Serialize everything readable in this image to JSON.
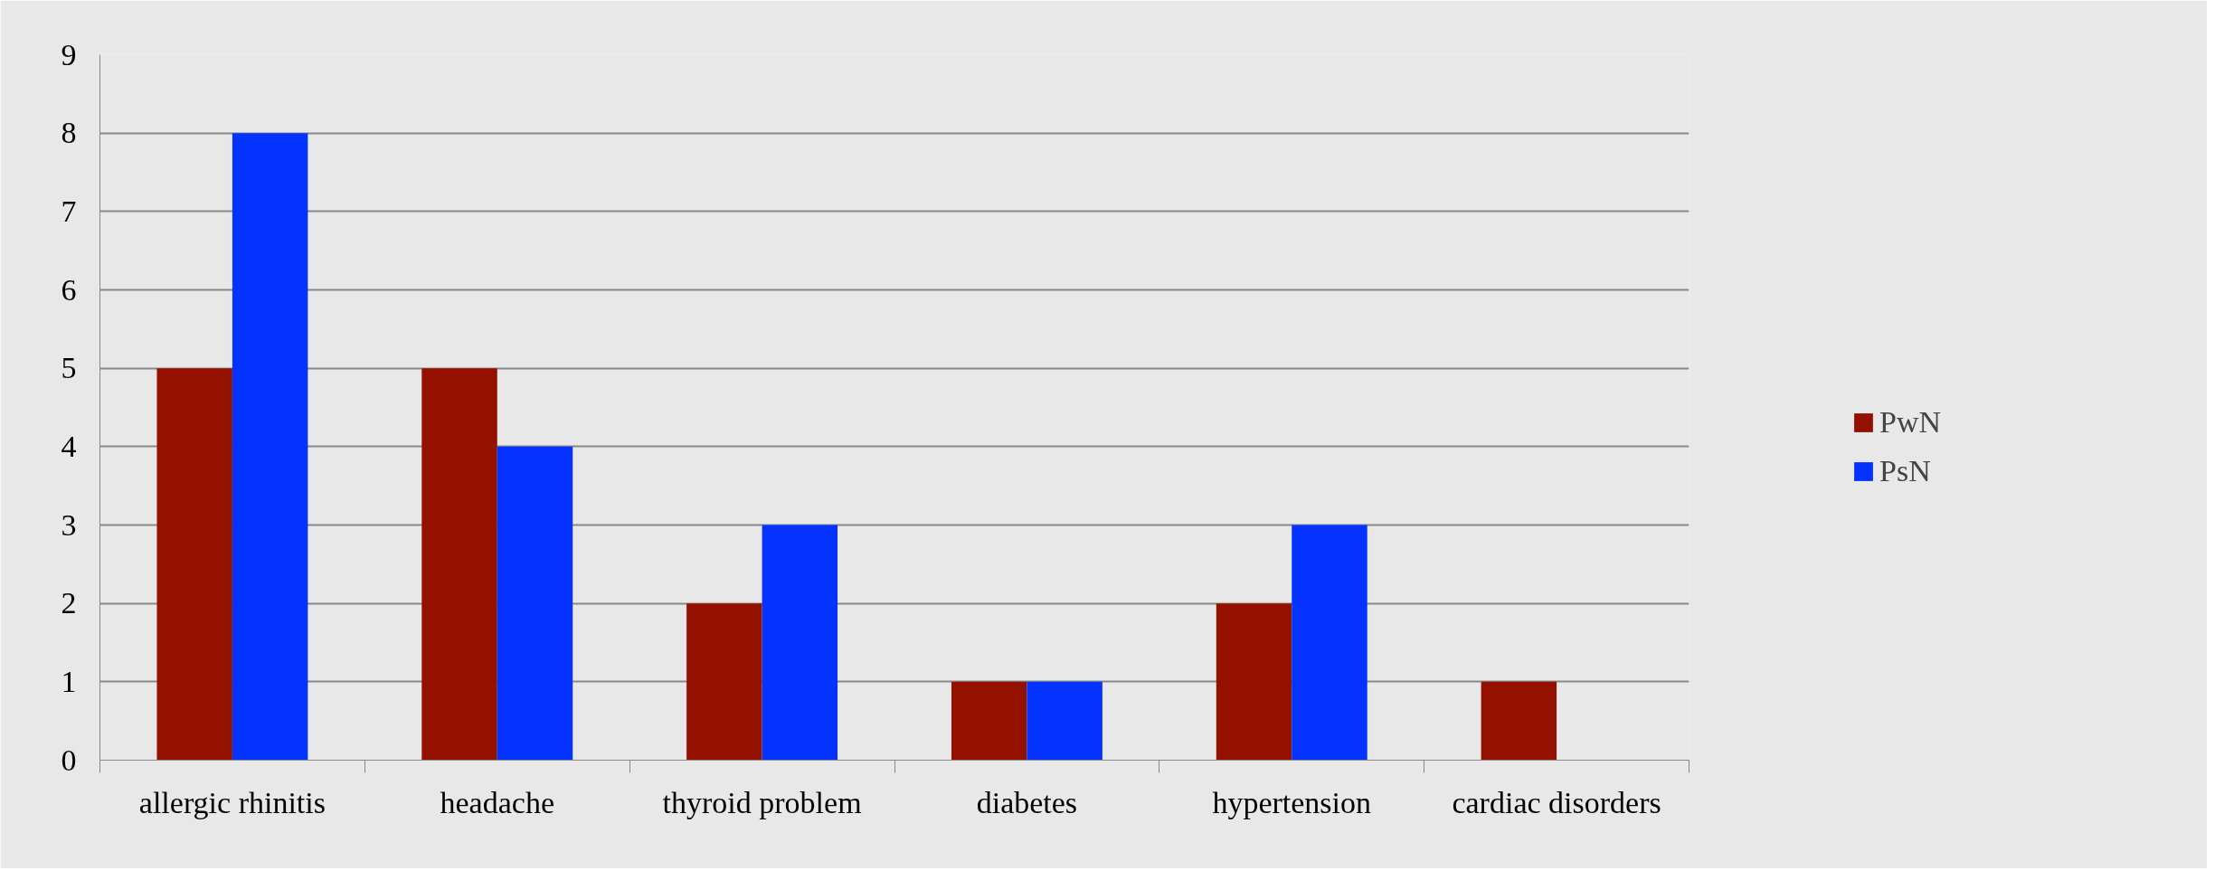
{
  "chart_data": {
    "type": "bar",
    "categories": [
      "allergic rhinitis",
      "headache",
      "thyroid problem",
      "diabetes",
      "hypertension",
      "cardiac disorders"
    ],
    "series": [
      {
        "name": "PwN",
        "color": "#941100",
        "values": [
          5,
          5,
          2,
          1,
          2,
          1
        ]
      },
      {
        "name": "PsN",
        "color": "#0433ff",
        "values": [
          8,
          4,
          3,
          1,
          3,
          0
        ]
      }
    ],
    "ylim": [
      0,
      9
    ],
    "yticks": [
      0,
      1,
      2,
      3,
      4,
      5,
      6,
      7,
      8,
      9
    ],
    "grid": "y",
    "legend": "right"
  }
}
